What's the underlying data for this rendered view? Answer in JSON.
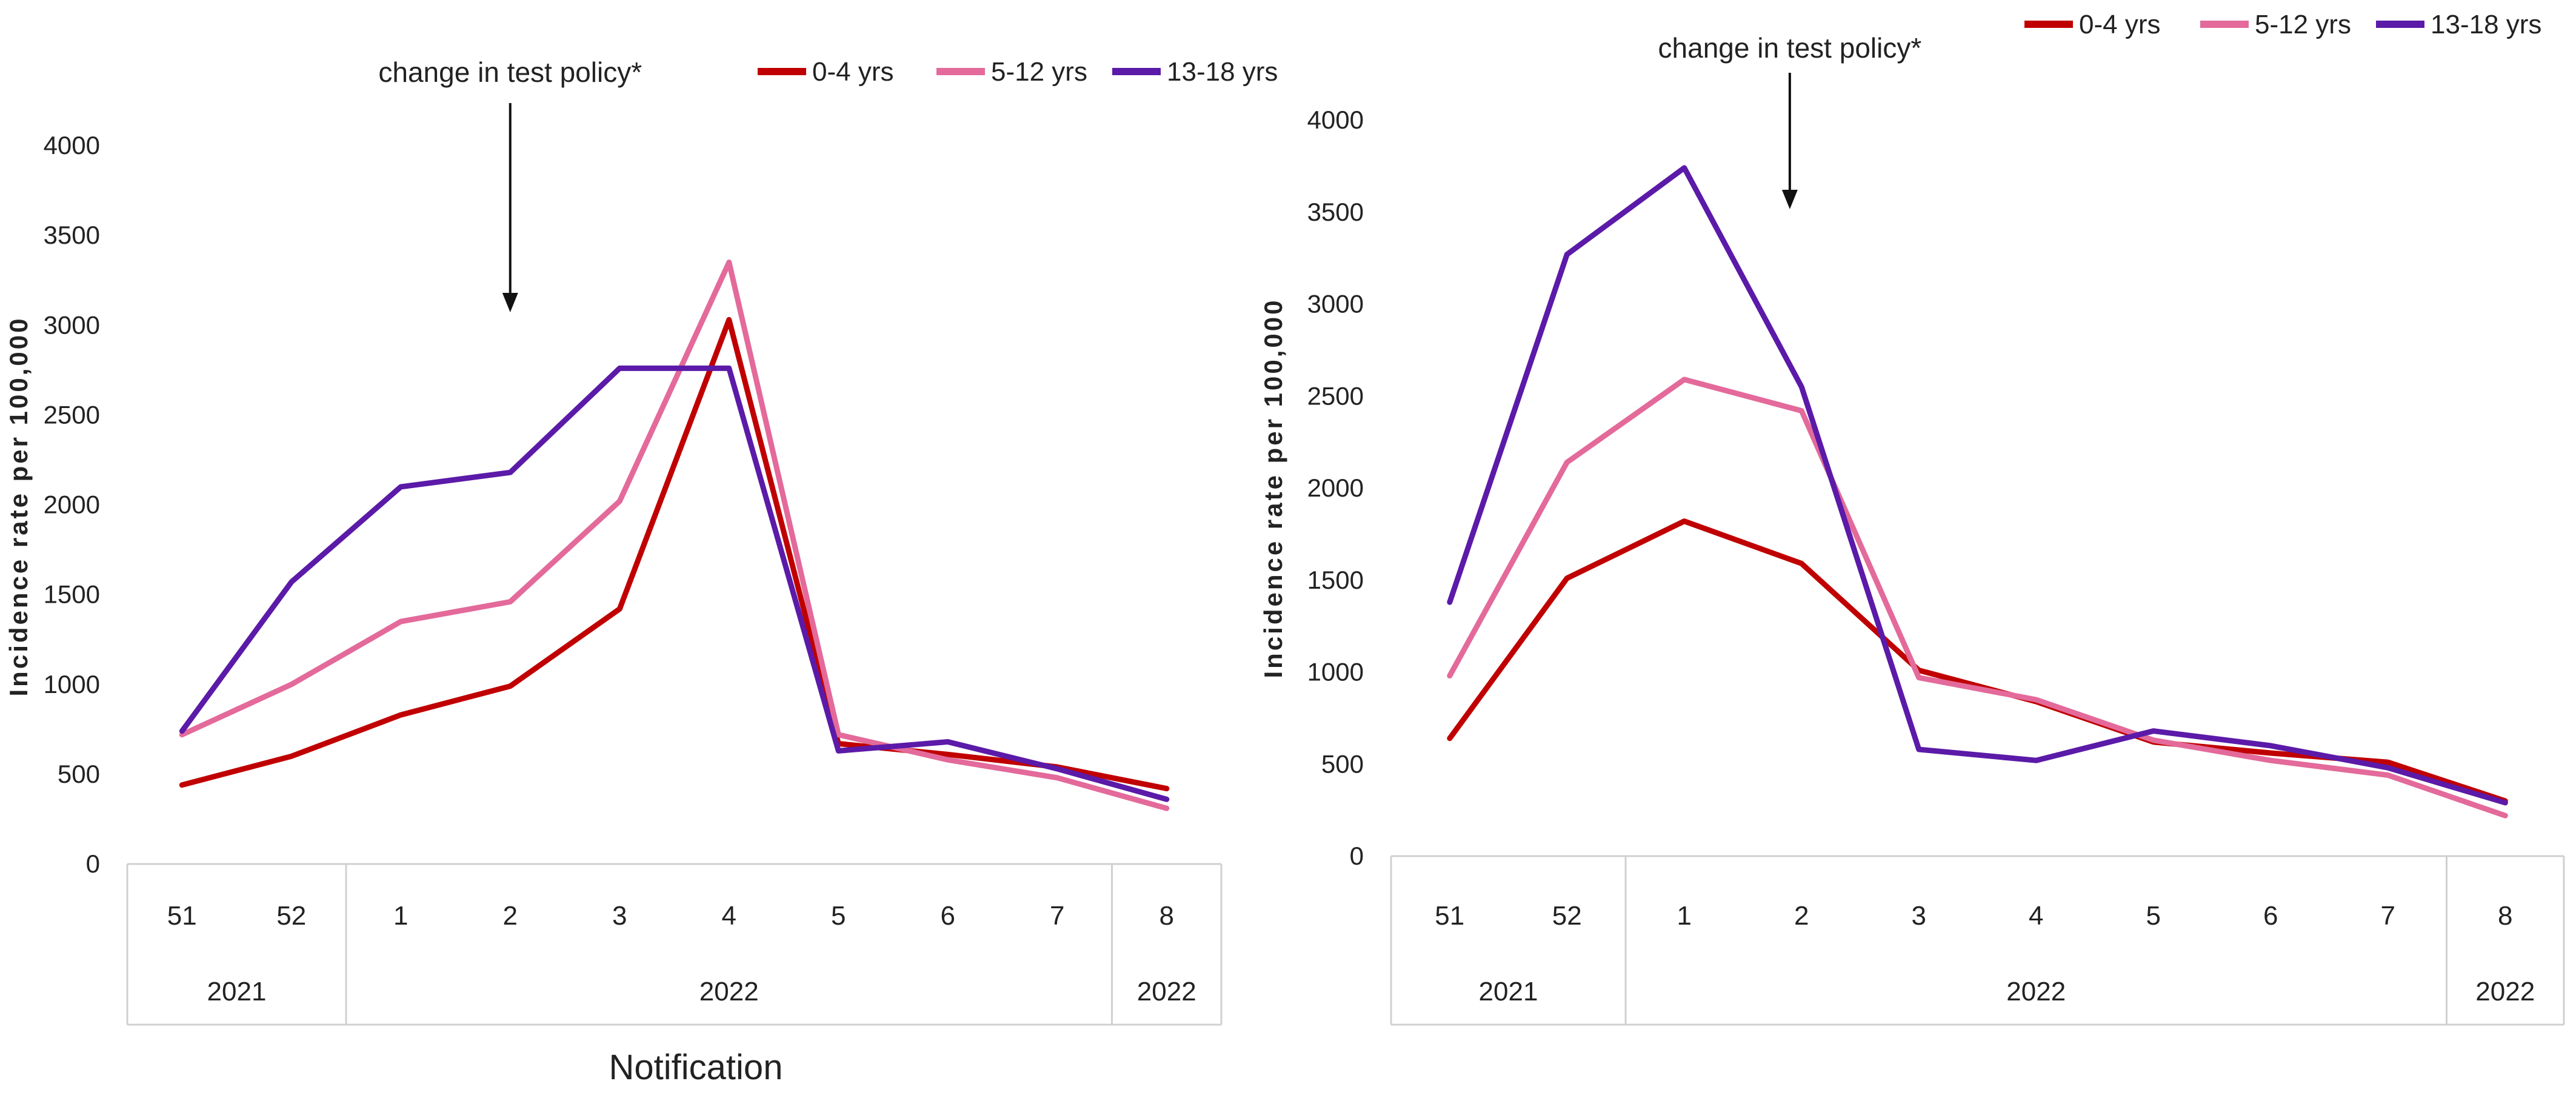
{
  "colors": {
    "age_0_4": "#C00000",
    "age_5_12": "#E36A9A",
    "age_13_18": "#5B1AA8",
    "axis": "#d0d0d0",
    "text": "#222222"
  },
  "shared": {
    "annotation": "change in test policy*",
    "y_axis_label": "Incidence rate per 100,000",
    "x_axis_label": "Notification"
  },
  "chart_data": [
    {
      "type": "line",
      "title": "",
      "xlabel": "Notification",
      "ylabel": "Incidence rate per 100,000",
      "ylim": [
        0,
        4000
      ],
      "yticks": [
        "0",
        "500",
        "1000",
        "1500",
        "2000",
        "2500",
        "3000",
        "3500",
        "4000"
      ],
      "categories": [
        "51",
        "52",
        "1",
        "2",
        "3",
        "4",
        "5",
        "6",
        "7",
        "8"
      ],
      "year_groups": [
        {
          "label": "2021",
          "start": 0,
          "end": 1
        },
        {
          "label": "2022",
          "start": 2,
          "end": 8
        },
        {
          "label": "2022",
          "start": 9,
          "end": 9
        }
      ],
      "annotation": {
        "text": "change in test policy*",
        "position": 3.0
      },
      "series": [
        {
          "name": "0-4 yrs",
          "color_key": "age_0_4",
          "values": [
            440,
            600,
            830,
            990,
            1420,
            3030,
            670,
            610,
            540,
            420
          ]
        },
        {
          "name": "5-12 yrs",
          "color_key": "age_5_12",
          "values": [
            720,
            1000,
            1350,
            1460,
            2020,
            3350,
            720,
            580,
            480,
            310
          ]
        },
        {
          "name": "13-18 yrs",
          "color_key": "age_13_18",
          "values": [
            740,
            1570,
            2100,
            2180,
            2760,
            2760,
            630,
            680,
            530,
            360
          ]
        }
      ],
      "legend": "top"
    },
    {
      "type": "line",
      "title": "",
      "xlabel": "",
      "ylabel": "Incidence rate per 100,000",
      "ylim": [
        0,
        4000
      ],
      "yticks": [
        "0",
        "500",
        "1000",
        "1500",
        "2000",
        "2500",
        "3000",
        "3500",
        "4000"
      ],
      "categories": [
        "51",
        "52",
        "1",
        "2",
        "3",
        "4",
        "5",
        "6",
        "7",
        "8"
      ],
      "year_groups": [
        {
          "label": "2021",
          "start": 0,
          "end": 1
        },
        {
          "label": "2022",
          "start": 2,
          "end": 8
        },
        {
          "label": "2022",
          "start": 9,
          "end": 9
        }
      ],
      "annotation": {
        "text": "change in test policy*",
        "position": 2.9
      },
      "series": [
        {
          "name": "0-4 yrs",
          "color_key": "age_0_4",
          "values": [
            640,
            1510,
            1820,
            1590,
            1010,
            840,
            620,
            560,
            510,
            300
          ]
        },
        {
          "name": "5-12 yrs",
          "color_key": "age_5_12",
          "values": [
            980,
            2140,
            2590,
            2420,
            970,
            850,
            630,
            520,
            440,
            220
          ]
        },
        {
          "name": "13-18 yrs",
          "color_key": "age_13_18",
          "values": [
            1380,
            3270,
            3740,
            2550,
            580,
            520,
            680,
            600,
            480,
            290
          ]
        }
      ],
      "legend": "top-right"
    }
  ]
}
